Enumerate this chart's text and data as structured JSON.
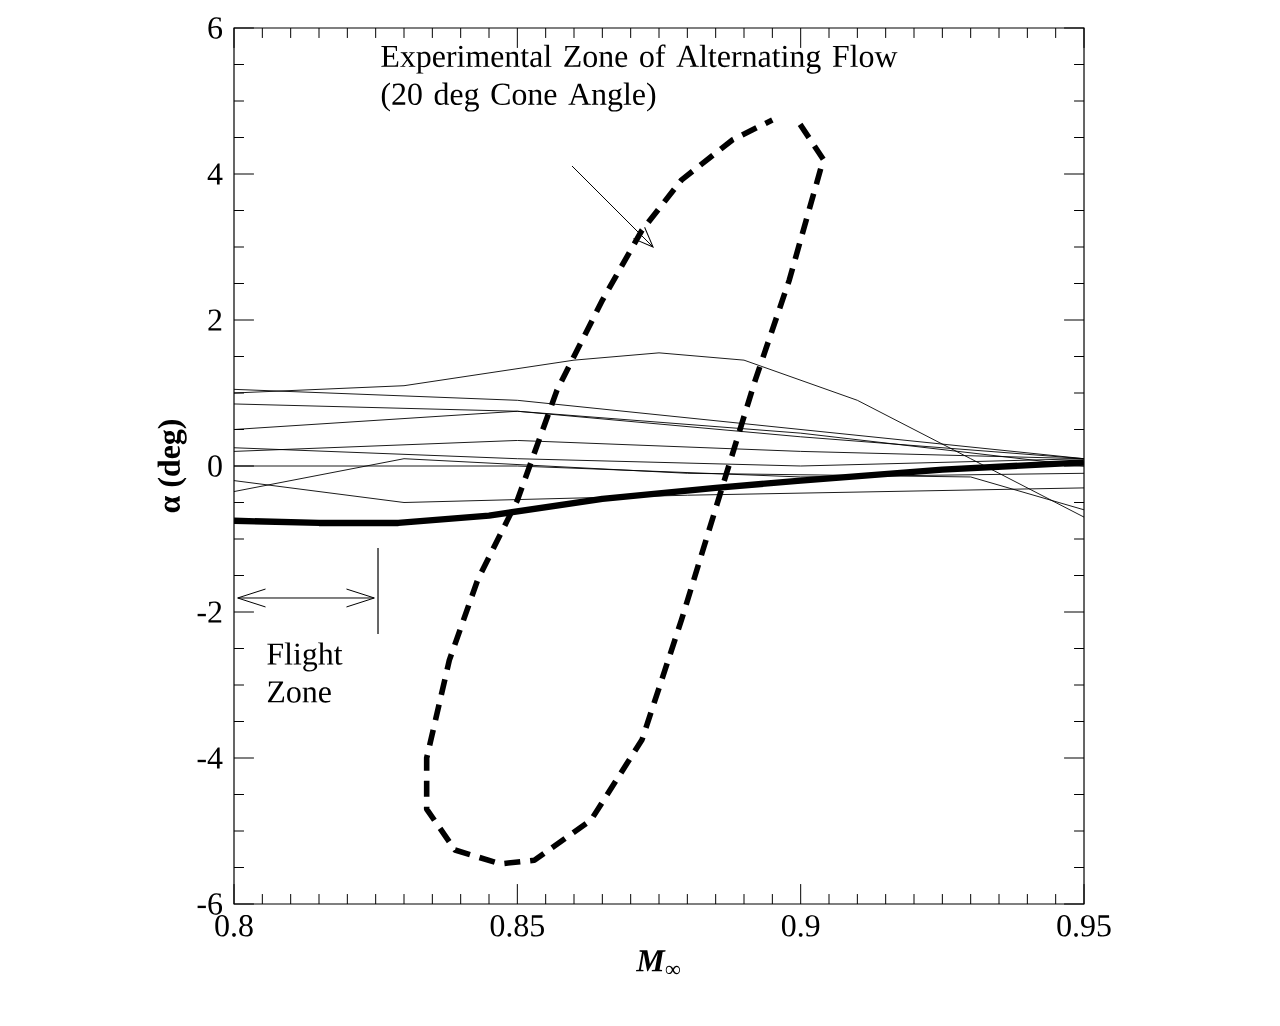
{
  "chart_data": {
    "type": "line",
    "xlabel": "M$_{∞}$",
    "ylabel": "α (deg)",
    "xlim": [
      0.8,
      0.95
    ],
    "ylim": [
      -6,
      6
    ],
    "xticks": [
      0.8,
      0.85,
      0.9,
      0.95
    ],
    "yticks": [
      -6,
      -4,
      -2,
      0,
      2,
      4,
      6
    ],
    "grid": false,
    "marker": "none",
    "annotations": [
      "Experimental Zone of Alternating Flow (20 deg Cone Angle)",
      "Flight Zone"
    ],
    "series": [
      {
        "color": "#000000",
        "line_style": "solid",
        "x": [
          0.8,
          0.815,
          0.829,
          0.845,
          0.865,
          0.885,
          0.9,
          0.925,
          0.95
        ],
        "values": [
          -0.75,
          -0.78,
          -0.78,
          -0.68,
          -0.45,
          -0.3,
          -0.2,
          -0.05,
          0.05
        ]
      },
      {
        "color": "#000000",
        "line_style": "solid",
        "x": [
          0.8,
          0.83,
          0.86,
          0.875,
          0.89,
          0.91,
          0.93,
          0.95
        ],
        "values": [
          1.0,
          1.1,
          1.45,
          1.55,
          1.45,
          0.9,
          0.1,
          -0.7
        ]
      },
      {
        "color": "#000000",
        "line_style": "solid",
        "x": [
          0.8,
          0.85,
          0.9,
          0.95
        ],
        "values": [
          1.05,
          0.9,
          0.5,
          0.1
        ]
      },
      {
        "color": "#000000",
        "line_style": "solid",
        "x": [
          0.8,
          0.85,
          0.9,
          0.95
        ],
        "values": [
          0.85,
          0.75,
          0.4,
          0.1
        ]
      },
      {
        "color": "#000000",
        "line_style": "solid",
        "x": [
          0.8,
          0.85,
          0.9,
          0.95
        ],
        "values": [
          0.5,
          0.75,
          0.45,
          0.0
        ]
      },
      {
        "color": "#000000",
        "line_style": "solid",
        "x": [
          0.8,
          0.85,
          0.9,
          0.95
        ],
        "values": [
          0.25,
          0.1,
          0.0,
          0.1
        ]
      },
      {
        "color": "#000000",
        "line_style": "solid",
        "x": [
          0.8,
          0.85,
          0.9,
          0.95
        ],
        "values": [
          0.2,
          0.35,
          0.2,
          0.1
        ]
      },
      {
        "color": "#000000",
        "line_style": "solid",
        "x": [
          0.8,
          0.83,
          0.88,
          0.95
        ],
        "values": [
          -0.2,
          -0.5,
          -0.4,
          -0.3
        ]
      },
      {
        "color": "#000000",
        "line_style": "solid",
        "x": [
          0.8,
          0.83,
          0.88,
          0.93,
          0.95
        ],
        "values": [
          -0.35,
          0.1,
          -0.1,
          -0.15,
          -0.6
        ]
      },
      {
        "color": "#000000",
        "line_style": "solid",
        "x": [
          0.8,
          0.85,
          0.9,
          0.95
        ],
        "values": [
          0.0,
          0.0,
          -0.15,
          -0.1
        ]
      },
      {
        "color": "#000000",
        "line_style": "dashed",
        "x": [
          0.8999,
          0.904,
          0.898,
          0.892,
          0.886,
          0.879,
          0.872,
          0.863,
          0.853,
          0.847,
          0.839,
          0.834,
          0.834,
          0.838,
          0.843,
          0.85,
          0.857,
          0.865,
          0.872,
          0.879,
          0.888,
          0.895
        ],
        "values": [
          4.68,
          4.2,
          2.55,
          1.18,
          -0.33,
          -2.1,
          -3.75,
          -4.85,
          -5.4,
          -5.45,
          -5.26,
          -4.7,
          -4.0,
          -2.66,
          -1.56,
          -0.47,
          1.04,
          2.27,
          3.23,
          3.92,
          4.47,
          4.74
        ]
      }
    ]
  }
}
